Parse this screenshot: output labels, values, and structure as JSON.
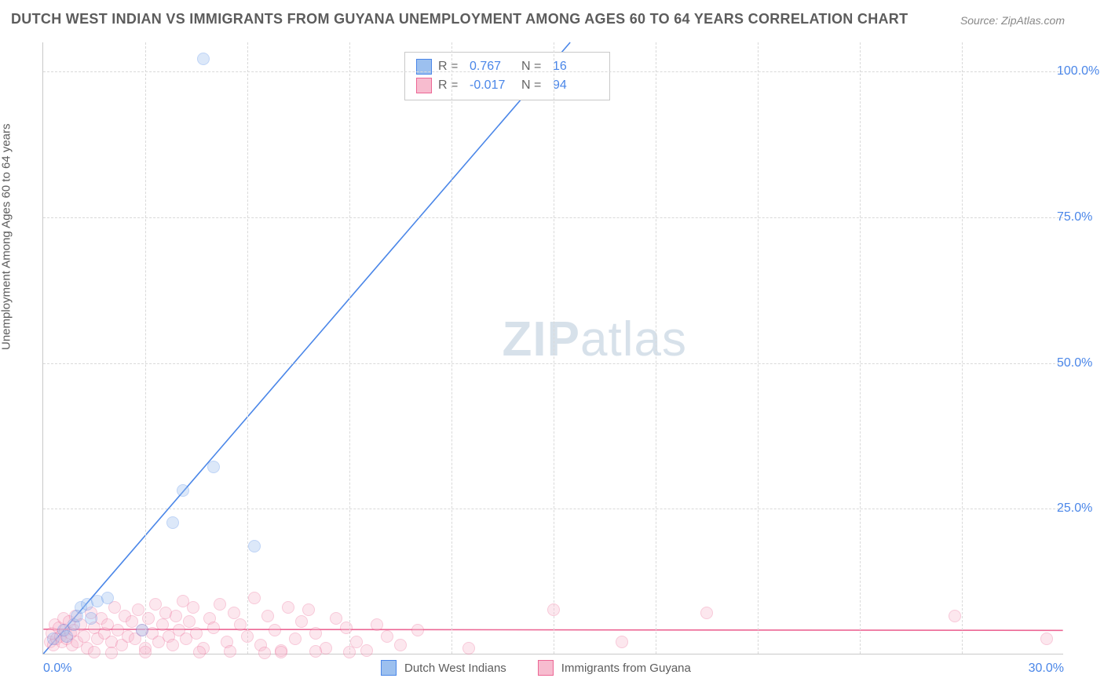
{
  "title": "DUTCH WEST INDIAN VS IMMIGRANTS FROM GUYANA UNEMPLOYMENT AMONG AGES 60 TO 64 YEARS CORRELATION CHART",
  "source_label": "Source:",
  "source_value": "ZipAtlas.com",
  "ylabel": "Unemployment Among Ages 60 to 64 years",
  "watermark_bold": "ZIP",
  "watermark_rest": "atlas",
  "chart": {
    "type": "scatter",
    "xlim": [
      0,
      30
    ],
    "ylim": [
      0,
      105
    ],
    "xticks": [
      0,
      30
    ],
    "xtick_labels": [
      "0.0%",
      "30.0%"
    ],
    "yticks": [
      25,
      50,
      75,
      100
    ],
    "ytick_labels": [
      "25.0%",
      "50.0%",
      "75.0%",
      "100.0%"
    ],
    "xgrid": [
      3,
      6,
      9,
      12,
      15,
      18,
      21,
      24,
      27
    ],
    "grid_color": "#d9d9d9",
    "background": "#ffffff",
    "axis_color": "#c9c9c9",
    "tick_label_color": "#4a86e8",
    "label_color": "#5c5c5c",
    "marker_radius": 8,
    "marker_opacity": 0.35,
    "regression_width": 1.6
  },
  "series": [
    {
      "id": "dutch",
      "name": "Dutch West Indians",
      "color_fill": "#9cc0ef",
      "color_stroke": "#4a86e8",
      "R_label": "R  =",
      "R": "0.767",
      "N_label": "N  =",
      "N": "16",
      "regression": {
        "x1": 0,
        "y1": 0,
        "x2": 15.5,
        "y2": 105
      },
      "points": [
        [
          0.3,
          2.5
        ],
        [
          0.6,
          4.0
        ],
        [
          0.7,
          3.0
        ],
        [
          0.9,
          5.0
        ],
        [
          1.0,
          6.5
        ],
        [
          1.1,
          8.0
        ],
        [
          1.3,
          8.5
        ],
        [
          1.4,
          6.0
        ],
        [
          1.6,
          9.0
        ],
        [
          1.9,
          9.5
        ],
        [
          2.9,
          4.0
        ],
        [
          3.8,
          22.5
        ],
        [
          4.1,
          28.0
        ],
        [
          4.7,
          102.0
        ],
        [
          5.0,
          32.0
        ],
        [
          6.2,
          18.5
        ]
      ]
    },
    {
      "id": "guyana",
      "name": "Immigrants from Guyana",
      "color_fill": "#f7bccf",
      "color_stroke": "#ec6694",
      "R_label": "R  =",
      "R": "-0.017",
      "N_label": "N  =",
      "N": "94",
      "regression": {
        "x1": 0,
        "y1": 4.2,
        "x2": 30,
        "y2": 4.0
      },
      "points": [
        [
          0.2,
          2.0
        ],
        [
          0.25,
          3.5
        ],
        [
          0.3,
          1.5
        ],
        [
          0.35,
          5.0
        ],
        [
          0.4,
          2.5
        ],
        [
          0.45,
          4.5
        ],
        [
          0.5,
          3.0
        ],
        [
          0.55,
          2.0
        ],
        [
          0.6,
          6.0
        ],
        [
          0.65,
          4.0
        ],
        [
          0.7,
          2.5
        ],
        [
          0.75,
          5.5
        ],
        [
          0.8,
          3.5
        ],
        [
          0.85,
          1.5
        ],
        [
          0.9,
          4.0
        ],
        [
          0.95,
          6.5
        ],
        [
          1.0,
          2.0
        ],
        [
          1.1,
          5.0
        ],
        [
          1.2,
          3.0
        ],
        [
          1.3,
          1.0
        ],
        [
          1.4,
          7.0
        ],
        [
          1.5,
          4.5
        ],
        [
          1.6,
          2.5
        ],
        [
          1.7,
          6.0
        ],
        [
          1.8,
          3.5
        ],
        [
          1.9,
          5.0
        ],
        [
          2.0,
          2.0
        ],
        [
          2.1,
          8.0
        ],
        [
          2.2,
          4.0
        ],
        [
          2.3,
          1.5
        ],
        [
          2.4,
          6.5
        ],
        [
          2.5,
          3.0
        ],
        [
          2.6,
          5.5
        ],
        [
          2.7,
          2.5
        ],
        [
          2.8,
          7.5
        ],
        [
          2.9,
          4.0
        ],
        [
          3.0,
          1.0
        ],
        [
          3.1,
          6.0
        ],
        [
          3.2,
          3.5
        ],
        [
          3.3,
          8.5
        ],
        [
          3.4,
          2.0
        ],
        [
          3.5,
          5.0
        ],
        [
          3.6,
          7.0
        ],
        [
          3.7,
          3.0
        ],
        [
          3.8,
          1.5
        ],
        [
          3.9,
          6.5
        ],
        [
          4.0,
          4.0
        ],
        [
          4.1,
          9.0
        ],
        [
          4.2,
          2.5
        ],
        [
          4.3,
          5.5
        ],
        [
          4.4,
          8.0
        ],
        [
          4.5,
          3.5
        ],
        [
          4.7,
          1.0
        ],
        [
          4.9,
          6.0
        ],
        [
          5.0,
          4.5
        ],
        [
          5.2,
          8.5
        ],
        [
          5.4,
          2.0
        ],
        [
          5.6,
          7.0
        ],
        [
          5.8,
          5.0
        ],
        [
          6.0,
          3.0
        ],
        [
          6.2,
          9.5
        ],
        [
          6.4,
          1.5
        ],
        [
          6.6,
          6.5
        ],
        [
          6.8,
          4.0
        ],
        [
          7.0,
          0.5
        ],
        [
          7.2,
          8.0
        ],
        [
          7.4,
          2.5
        ],
        [
          7.6,
          5.5
        ],
        [
          7.8,
          7.5
        ],
        [
          8.0,
          3.5
        ],
        [
          8.3,
          1.0
        ],
        [
          8.6,
          6.0
        ],
        [
          8.9,
          4.5
        ],
        [
          9.2,
          2.0
        ],
        [
          9.5,
          0.5
        ],
        [
          9.8,
          5.0
        ],
        [
          10.1,
          3.0
        ],
        [
          10.5,
          1.5
        ],
        [
          11.0,
          4.0
        ],
        [
          12.5,
          1.0
        ],
        [
          15.0,
          7.5
        ],
        [
          17.0,
          2.0
        ],
        [
          19.5,
          7.0
        ],
        [
          26.8,
          6.5
        ],
        [
          29.5,
          2.5
        ],
        [
          7.0,
          0.3
        ],
        [
          8.0,
          0.4
        ],
        [
          9.0,
          0.3
        ],
        [
          6.5,
          0.2
        ],
        [
          5.5,
          0.4
        ],
        [
          4.6,
          0.3
        ],
        [
          3.0,
          0.3
        ],
        [
          2.0,
          0.2
        ],
        [
          1.5,
          0.3
        ]
      ]
    }
  ]
}
